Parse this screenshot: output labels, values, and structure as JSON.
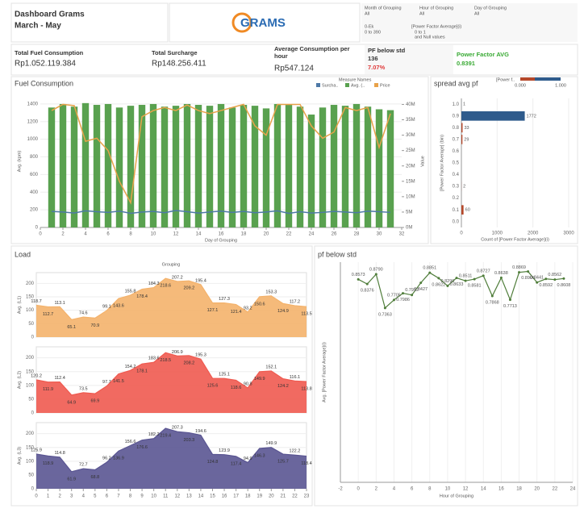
{
  "header": {
    "title": "Dashboard Grams",
    "subtitle": "March - May",
    "logo": "GRAMS"
  },
  "filters": [
    {
      "label": "Month of Grouping",
      "value": "All"
    },
    {
      "label": "Hour of Grouping",
      "value": "All"
    },
    {
      "label": "Day of Grouping",
      "value": "All"
    },
    {
      "label": "0-Ek",
      "value": "0 to 390"
    },
    {
      "label": "[Power Factor Average](i)",
      "value": "0 to 1",
      "note": "and Null values"
    }
  ],
  "kpis": [
    {
      "label": "Total Fuel Consumption",
      "value": "Rp1.052.119.384"
    },
    {
      "label": "Total Surcharge",
      "value": "Rp148.256.411"
    },
    {
      "label": "Average Consumption per hour",
      "value": "Rp547.124"
    },
    {
      "label": "PF below std",
      "value": "136",
      "extra": "7.07%"
    },
    {
      "label": "Power Factor AVG",
      "value": "0.8391"
    }
  ],
  "load_panel": {
    "title": "Load",
    "header": "Grouping"
  },
  "chart_data": [
    {
      "type": "bar_line",
      "title": "Fuel Consumption",
      "legend_title": "Measure Names",
      "xlabel": "Day of Grouping",
      "ylabel": "Avg. (kpm)",
      "y2label": "Value",
      "x": [
        1,
        2,
        3,
        4,
        5,
        6,
        7,
        8,
        9,
        10,
        11,
        12,
        13,
        14,
        15,
        16,
        17,
        18,
        19,
        20,
        21,
        22,
        23,
        24,
        25,
        26,
        27,
        28,
        29,
        30,
        31
      ],
      "xlim": [
        0,
        32
      ],
      "xticks": [
        0,
        2,
        4,
        6,
        8,
        10,
        12,
        14,
        16,
        18,
        20,
        22,
        24,
        26,
        28,
        30,
        32
      ],
      "ylim": [
        0,
        1500
      ],
      "yticks": [
        0,
        200,
        400,
        600,
        800,
        1000,
        1200,
        1400
      ],
      "y2lim": [
        0,
        43000000
      ],
      "y2ticks": [
        {
          "value": 0,
          "label": "0M"
        },
        {
          "value": 5000000,
          "label": "5M"
        },
        {
          "value": 10000000,
          "label": "10M"
        },
        {
          "value": 15000000,
          "label": "15M"
        },
        {
          "value": 20000000,
          "label": "20M"
        },
        {
          "value": 25000000,
          "label": "25M"
        },
        {
          "value": 30000000,
          "label": "30M"
        },
        {
          "value": 35000000,
          "label": "35M"
        },
        {
          "value": 40000000,
          "label": "40M"
        }
      ],
      "grid": true,
      "series": [
        {
          "name": "Surcha..",
          "color": "#4e79a7",
          "mark": "line",
          "axis": "y2",
          "values": [
            5200000,
            5000000,
            4700000,
            5400000,
            5100000,
            4900000,
            5300000,
            4600000,
            5000000,
            5200000,
            4800000,
            5500000,
            5100000,
            4700000,
            5000000,
            5300000,
            4900000,
            5200000,
            4800000,
            5000000,
            5400000,
            4600000,
            5100000,
            4700000,
            4900000,
            5200000,
            5000000,
            4800000,
            5300000,
            5100000,
            4900000
          ]
        },
        {
          "name": "Avg. (..",
          "color": "#59a14f",
          "mark": "bar",
          "values": [
            1360,
            1400,
            1370,
            1410,
            1390,
            1400,
            1360,
            1380,
            1390,
            1400,
            1370,
            1380,
            1400,
            1390,
            1380,
            1400,
            1360,
            1390,
            1380,
            1350,
            1400,
            1390,
            1370,
            1280,
            1360,
            1390,
            1380,
            1400,
            1370,
            1340,
            1330
          ]
        },
        {
          "name": "Price",
          "color": "#e8a24a",
          "mark": "line",
          "axis": "y2",
          "values": [
            38000000,
            40000000,
            39600000,
            28000000,
            29000000,
            25000000,
            15000000,
            8000000,
            36000000,
            38000000,
            39000000,
            38000000,
            39800000,
            38000000,
            37000000,
            38000000,
            39000000,
            40000000,
            33000000,
            30000000,
            40000000,
            40000000,
            40000000,
            33000000,
            29000000,
            31000000,
            39000000,
            38000000,
            39000000,
            26000000,
            37000000
          ]
        }
      ]
    },
    {
      "type": "hbar",
      "title": "spread avg pf",
      "legend_title": "[Power f..",
      "legend_ticks": [
        "0.000",
        "1.000"
      ],
      "xlabel": "Count of [Power Factor Average](i)",
      "ylabel": "[Power Factor Average] (bin)",
      "categories": [
        "1.0",
        "0.9",
        "0.8",
        "0.7",
        "0.6",
        "0.5",
        "0.4",
        "0.3",
        "0.2",
        "0.1",
        "0.0"
      ],
      "values": [
        1,
        1772,
        33,
        29,
        null,
        null,
        null,
        2,
        null,
        60,
        null
      ],
      "colors": [
        "#2f5b8c",
        "#2f5b8c",
        "#b5482a",
        "#b5482a",
        "#b5482a",
        "#b5482a",
        "#b5482a",
        "#b5482a",
        "#b5482a",
        "#b5482a",
        "#b5482a"
      ],
      "xlim": [
        0,
        3000
      ],
      "xticks": [
        0,
        1000,
        2000,
        3000
      ]
    },
    {
      "type": "area",
      "ylabel": "Avg. (L1)",
      "color": "#f4b26b",
      "x": [
        0,
        1,
        2,
        3,
        4,
        5,
        6,
        7,
        8,
        9,
        10,
        11,
        12,
        13,
        14,
        15,
        16,
        17,
        18,
        19,
        20,
        21,
        22,
        23
      ],
      "values": [
        118.7,
        112.7,
        113.1,
        65.1,
        74.6,
        70.9,
        99.1,
        143.6,
        155.8,
        178.4,
        184.3,
        218.6,
        207.2,
        209.2,
        195.4,
        127.1,
        127.3,
        121.4,
        93.2,
        150.6,
        153.3,
        124.9,
        117.2,
        113.5
      ],
      "xlim": [
        0,
        23
      ],
      "ylim": [
        0,
        240
      ],
      "yticks": [
        0,
        50,
        100,
        150,
        200
      ]
    },
    {
      "type": "area",
      "ylabel": "Avg. (L2)",
      "color": "#ef5a50",
      "x": [
        0,
        1,
        2,
        3,
        4,
        5,
        6,
        7,
        8,
        9,
        10,
        11,
        12,
        13,
        14,
        15,
        16,
        17,
        18,
        19,
        20,
        21,
        22,
        23
      ],
      "values": [
        120.2,
        111.9,
        112.4,
        64.9,
        73.5,
        69.9,
        97.7,
        141.5,
        154.2,
        178.1,
        183.6,
        218.5,
        206.9,
        208.2,
        195.3,
        125.6,
        125.1,
        118.6,
        90.8,
        149.9,
        152.1,
        124.2,
        116.1,
        113.8
      ],
      "xlim": [
        0,
        23
      ],
      "ylim": [
        0,
        240
      ],
      "yticks": [
        0,
        50,
        100,
        150,
        200
      ]
    },
    {
      "type": "area",
      "ylabel": "Avg. (L3)",
      "color": "#5a5592",
      "x": [
        0,
        1,
        2,
        3,
        4,
        5,
        6,
        7,
        8,
        9,
        10,
        11,
        12,
        13,
        14,
        15,
        16,
        17,
        18,
        19,
        20,
        21,
        22,
        23
      ],
      "values": [
        125.9,
        118.9,
        114.8,
        61.9,
        72.7,
        68.8,
        96.2,
        136.9,
        156.6,
        176.6,
        182.2,
        219.4,
        207.3,
        203.3,
        194.6,
        124.8,
        123.9,
        117.4,
        94.9,
        146.3,
        149.9,
        125.7,
        122.2,
        118.4
      ],
      "xlim": [
        0,
        23
      ],
      "ylim": [
        0,
        240
      ],
      "yticks": [
        0,
        50,
        100,
        150,
        200
      ],
      "xticks": [
        0,
        1,
        2,
        3,
        4,
        5,
        6,
        7,
        8,
        9,
        10,
        11,
        12,
        13,
        14,
        15,
        16,
        17,
        18,
        19,
        20,
        21,
        22,
        23
      ]
    },
    {
      "type": "line",
      "title": "pf below std",
      "xlabel": "Hour of Grouping",
      "ylabel": "Avg. [Power Factor Average](i)",
      "color": "#4f7d3a",
      "x": [
        0,
        1,
        2,
        3,
        4,
        5,
        6,
        7,
        8,
        9,
        10,
        11,
        12,
        13,
        14,
        15,
        16,
        17,
        18,
        19,
        20,
        21,
        22,
        23
      ],
      "values": [
        0.8573,
        0.8376,
        0.879,
        0.7363,
        0.7705,
        0.7986,
        0.7912,
        0.8427,
        0.8851,
        0.8622,
        0.8296,
        0.8633,
        0.8511,
        0.8581,
        0.8727,
        0.7868,
        0.8638,
        0.7713,
        0.8869,
        0.8906,
        0.8441,
        0.8592,
        0.8562,
        0.8608
      ],
      "value_labels": [
        "0.8573",
        "0.8376",
        "0.8790",
        "0.7363",
        "0.7705",
        "0.7986",
        "0.7912",
        "0.8427",
        "0.8851",
        "0.8622",
        "0.8296",
        "0.8633",
        "0.8511",
        "0.8581",
        "0.8727",
        "0.7868",
        "0.8638",
        "0.7713",
        "0.8869",
        "0.8906",
        "0.8441",
        "0.8592",
        "0.8562",
        "0.8608"
      ],
      "xlim": [
        -2,
        24
      ],
      "xticks": [
        -2,
        0,
        2,
        4,
        6,
        8,
        10,
        12,
        14,
        16,
        18,
        20,
        22,
        24
      ],
      "ylim": [
        0,
        0.93
      ]
    }
  ]
}
